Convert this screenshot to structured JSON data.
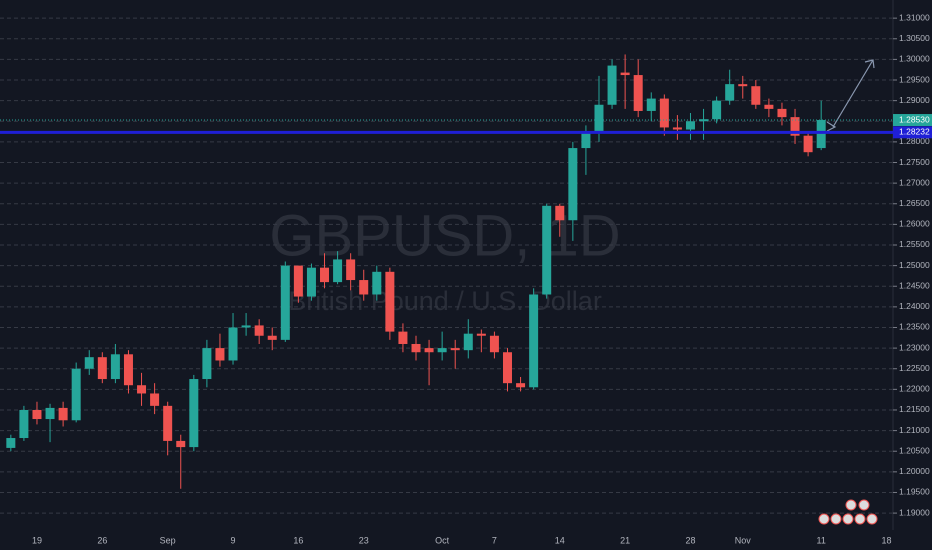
{
  "chart_data": {
    "type": "candlestick",
    "watermark": {
      "symbol": "GBPUSD, 1D",
      "description": "British Pound / U.S. Dollar"
    },
    "categories": [
      null,
      null,
      "19",
      null,
      null,
      null,
      null,
      "26",
      null,
      null,
      null,
      null,
      "Sep",
      null,
      null,
      null,
      null,
      "9",
      null,
      null,
      null,
      null,
      "16",
      null,
      null,
      null,
      null,
      "23",
      null,
      null,
      null,
      null,
      null,
      "Oct",
      null,
      null,
      null,
      "7",
      null,
      null,
      null,
      null,
      "14",
      null,
      null,
      null,
      null,
      "21",
      null,
      null,
      null,
      null,
      "28",
      null,
      null,
      null,
      "Nov",
      null,
      null,
      null,
      null,
      null,
      "11",
      null,
      null,
      null,
      null,
      "18"
    ],
    "open": [
      1.2058,
      1.2082,
      1.215,
      1.2128,
      1.2155,
      1.2125,
      1.225,
      1.2278,
      1.2225,
      1.2285,
      1.221,
      1.219,
      1.216,
      1.2075,
      1.206,
      1.2225,
      1.23,
      1.227,
      1.235,
      1.2355,
      1.233,
      1.232,
      1.25,
      1.2425,
      1.2495,
      1.246,
      1.2515,
      1.2465,
      1.243,
      1.2485,
      1.234,
      1.231,
      1.23,
      1.229,
      1.23,
      1.2295,
      1.2335,
      1.233,
      1.229,
      1.2215,
      1.2205,
      1.243,
      1.2645,
      1.261,
      1.2785,
      1.2825,
      1.289,
      1.2968,
      1.2962,
      1.2875,
      1.2905,
      1.2835,
      1.283,
      1.285,
      1.2855,
      1.29,
      1.294,
      1.2935,
      1.289,
      1.288,
      1.286,
      1.2815,
      1.2785,
      null,
      null,
      null,
      null,
      null
    ],
    "high": [
      1.209,
      1.216,
      1.217,
      1.2165,
      1.217,
      1.2265,
      1.2295,
      1.229,
      1.231,
      1.2295,
      1.224,
      1.2215,
      1.217,
      1.209,
      1.2235,
      1.232,
      1.2335,
      1.2385,
      1.2385,
      1.237,
      1.235,
      1.251,
      1.25,
      1.2505,
      1.253,
      1.2535,
      1.253,
      1.249,
      1.25,
      1.2495,
      1.236,
      1.233,
      1.232,
      1.234,
      1.232,
      1.237,
      1.2345,
      1.234,
      1.23,
      1.223,
      1.2445,
      1.265,
      1.265,
      1.28,
      1.284,
      1.296,
      1.3,
      1.3012,
      1.3,
      1.292,
      1.2915,
      1.2865,
      1.287,
      1.288,
      1.291,
      1.2975,
      1.296,
      1.295,
      1.2905,
      1.2895,
      1.288,
      1.2825,
      1.29,
      null,
      null,
      null,
      null,
      null
    ],
    "low": [
      1.205,
      1.2075,
      1.2115,
      1.2072,
      1.211,
      1.212,
      1.2235,
      1.2215,
      1.2215,
      1.219,
      1.216,
      1.214,
      1.204,
      1.1959,
      1.205,
      1.2205,
      1.2255,
      1.226,
      1.233,
      1.231,
      1.2295,
      1.2315,
      1.241,
      1.2415,
      1.2445,
      1.2455,
      1.244,
      1.2415,
      1.2415,
      1.232,
      1.229,
      1.227,
      1.221,
      1.227,
      1.225,
      1.2275,
      1.229,
      1.2275,
      1.2195,
      1.2195,
      1.22,
      1.242,
      1.257,
      1.256,
      1.272,
      1.28,
      1.288,
      1.288,
      1.286,
      1.285,
      1.2815,
      1.2805,
      1.2805,
      1.2805,
      1.2845,
      1.289,
      1.2905,
      1.288,
      1.286,
      1.284,
      1.2795,
      1.2765,
      1.278,
      null,
      null,
      null,
      null,
      null
    ],
    "close": [
      1.2082,
      1.215,
      1.2128,
      1.2155,
      1.2125,
      1.225,
      1.2278,
      1.2225,
      1.2285,
      1.221,
      1.219,
      1.216,
      1.2075,
      1.206,
      1.2225,
      1.23,
      1.227,
      1.235,
      1.2355,
      1.233,
      1.232,
      1.25,
      1.2425,
      1.2495,
      1.246,
      1.2515,
      1.2465,
      1.243,
      1.2485,
      1.234,
      1.231,
      1.229,
      1.229,
      1.23,
      1.2295,
      1.2335,
      1.233,
      1.229,
      1.2215,
      1.2205,
      1.243,
      1.2645,
      1.261,
      1.2785,
      1.2825,
      1.289,
      1.2985,
      1.2962,
      1.2875,
      1.2905,
      1.2835,
      1.283,
      1.285,
      1.2855,
      1.29,
      1.294,
      1.2935,
      1.289,
      1.288,
      1.286,
      1.2815,
      1.2775,
      1.2853,
      null,
      null,
      null,
      null,
      null
    ],
    "up_color": "#26a69a",
    "down_color": "#ef5350",
    "ylim": [
      1.1859,
      1.3144
    ],
    "yticks": [
      {
        "value": 1.19,
        "label": "1.19000"
      },
      {
        "value": 1.195,
        "label": "1.19500"
      },
      {
        "value": 1.2,
        "label": "1.20000"
      },
      {
        "value": 1.205,
        "label": "1.20500"
      },
      {
        "value": 1.21,
        "label": "1.21000"
      },
      {
        "value": 1.215,
        "label": "1.21500"
      },
      {
        "value": 1.22,
        "label": "1.22000"
      },
      {
        "value": 1.225,
        "label": "1.22500"
      },
      {
        "value": 1.23,
        "label": "1.23000"
      },
      {
        "value": 1.235,
        "label": "1.23500"
      },
      {
        "value": 1.24,
        "label": "1.24000"
      },
      {
        "value": 1.245,
        "label": "1.24500"
      },
      {
        "value": 1.25,
        "label": "1.25000"
      },
      {
        "value": 1.255,
        "label": "1.25500"
      },
      {
        "value": 1.26,
        "label": "1.26000"
      },
      {
        "value": 1.265,
        "label": "1.26500"
      },
      {
        "value": 1.27,
        "label": "1.27000"
      },
      {
        "value": 1.275,
        "label": "1.27500"
      },
      {
        "value": 1.28,
        "label": "1.28000"
      },
      {
        "value": 1.285,
        "label": "1.28500"
      },
      {
        "value": 1.29,
        "label": "1.29000"
      },
      {
        "value": 1.295,
        "label": "1.29500"
      },
      {
        "value": 1.3,
        "label": "1.30000"
      },
      {
        "value": 1.305,
        "label": "1.30500"
      },
      {
        "value": 1.31,
        "label": "1.31000"
      }
    ],
    "grid": true,
    "horizontal_line": {
      "value": 1.28232,
      "label": "1.28232",
      "color": "#1f1fd6"
    },
    "last_price": {
      "value": 1.2853,
      "label": "1.28530",
      "color": "#26a69a"
    }
  }
}
